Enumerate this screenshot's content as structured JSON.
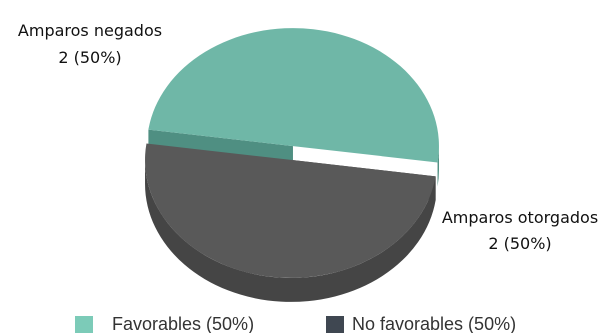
{
  "chart_data": {
    "type": "pie",
    "title": "",
    "slices": [
      {
        "name": "Amparos negados",
        "value": 2,
        "percent_label": "2  (50%)",
        "color": "#6fb7a7",
        "side_color": "#4f8f82"
      },
      {
        "name": "Amparos otorgados",
        "value": 2,
        "percent_label": "2  (50%)",
        "color": "#595959",
        "side_color": "#454545"
      }
    ],
    "legend": [
      {
        "label": "Favorables (50%)",
        "color": "#7ccbb8"
      },
      {
        "label": "No favorables (50%)",
        "color": "#3f4751"
      }
    ],
    "legend_position": "bottom",
    "style": "3d-pie-exploded"
  }
}
